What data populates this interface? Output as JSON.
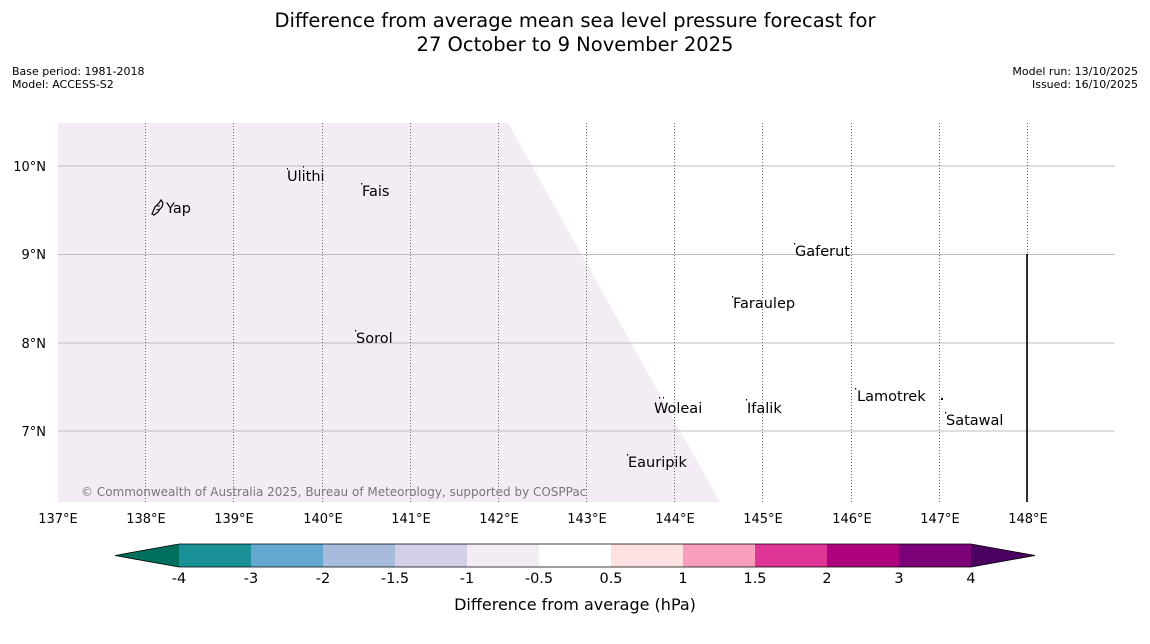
{
  "title": {
    "line1": "Difference from average mean sea level pressure forecast for",
    "line2": "27 October to 9 November 2025"
  },
  "meta_left": {
    "base_period": "Base period: 1981-2018",
    "model": "Model: ACCESS-S2"
  },
  "meta_right": {
    "model_run": "Model run: 13/10/2025",
    "issued": "Issued: 16/10/2025"
  },
  "map": {
    "lat_ticks": [
      "10°N",
      "9°N",
      "8°N",
      "7°N"
    ],
    "lon_ticks": [
      "137°E",
      "138°E",
      "139°E",
      "140°E",
      "141°E",
      "142°E",
      "143°E",
      "144°E",
      "145°E",
      "146°E",
      "147°E",
      "148°E"
    ],
    "places": [
      "Yap",
      "Ulithi",
      "Fais",
      "Gaferut",
      "Faraulep",
      "Sorol",
      "Woleai",
      "Ifalik",
      "Lamotrek",
      "Satawal",
      "Eauripik"
    ],
    "copyright": "© Commonwealth of Australia 2025, Bureau of Meteorology, supported by COSPPac",
    "shaded_region_class": "-1 to -0.5 hPa",
    "shaded_region_color": "#f3ecf5"
  },
  "colorbar": {
    "label": "Difference from average (hPa)",
    "ticks": [
      "-4",
      "-3",
      "-2",
      "-1.5",
      "-1",
      "-0.5",
      "0.5",
      "1",
      "1.5",
      "2",
      "3",
      "4"
    ],
    "low_extend_color": "#006f5e",
    "high_extend_color": "#4a0060",
    "colors": [
      "#1a9196",
      "#64a8d0",
      "#a7bbdc",
      "#d1d0e6",
      "#f3ecf5",
      "#ffffff",
      "#fde0e1",
      "#f89fbd",
      "#de3597",
      "#ae017e",
      "#7a0177"
    ]
  }
}
